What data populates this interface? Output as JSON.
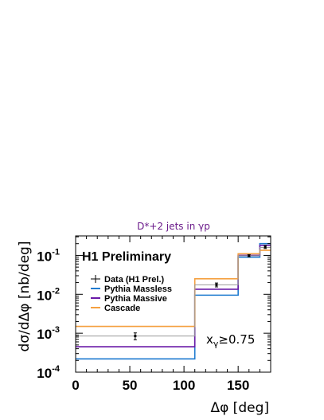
{
  "chart_data": {
    "type": "line",
    "title": "D*+2 jets in γp",
    "xlabel": "Δφ [deg]",
    "ylabel": "dσ/dΔφ [nb/deg]",
    "xlim": [
      0,
      180
    ],
    "ylim_log10": [
      -4,
      -0.5
    ],
    "y_scale": "log",
    "x_ticks": [
      0,
      50,
      100,
      150
    ],
    "y_ticks": [
      {
        "exp": -4,
        "label": "10",
        "sup": "-4"
      },
      {
        "exp": -3,
        "label": "10",
        "sup": "-3"
      },
      {
        "exp": -2,
        "label": "10",
        "sup": "-2"
      },
      {
        "exp": -1,
        "label": "10",
        "sup": "-1"
      }
    ],
    "bins": [
      [
        0,
        110
      ],
      [
        110,
        150
      ],
      [
        150,
        170
      ],
      [
        170,
        180
      ]
    ],
    "data": {
      "name": "Data (H1 Prel.)",
      "color": "#000000",
      "points": [
        {
          "x": 55,
          "y": 0.00085,
          "ylo": 0.00068,
          "yhi": 0.00102
        },
        {
          "x": 130,
          "y": 0.0175,
          "ylo": 0.0155,
          "yhi": 0.0195
        },
        {
          "x": 160,
          "y": 0.098,
          "ylo": 0.092,
          "yhi": 0.104
        },
        {
          "x": 175,
          "y": 0.165,
          "ylo": 0.15,
          "yhi": 0.18
        }
      ]
    },
    "series": [
      {
        "name": "Pythia Massless",
        "color": "#1f7bd0",
        "values": [
          0.00022,
          0.0095,
          0.09,
          0.2
        ]
      },
      {
        "name": "Pythia Massive",
        "color": "#6a1aa8",
        "values": [
          0.00045,
          0.0135,
          0.1,
          0.18
        ]
      },
      {
        "name": "Cascade",
        "color": "#f5a040",
        "values": [
          0.0015,
          0.025,
          0.11,
          0.135
        ]
      },
      {
        "name": "",
        "color": "#999999",
        "values": [
          0.00085,
          0.0175,
          0.098,
          0.16
        ]
      }
    ],
    "annotations": {
      "prelim": "H1 Preliminary",
      "cut_main": "x",
      "cut_sub": "γ",
      "cut_rest": "≥0.75"
    }
  }
}
